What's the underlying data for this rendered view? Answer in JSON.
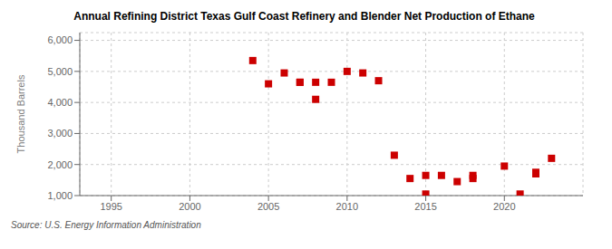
{
  "chart_data": {
    "type": "scatter",
    "title": "Annual Refining District Texas Gulf Coast Refinery and Blender Net Production of Ethane",
    "ylabel": "Thousand Barrels",
    "annotations": [
      "Source: U.S. Energy Information Administration"
    ],
    "x": [
      2004,
      2005,
      2006,
      2007,
      2007,
      2008,
      2008,
      2009,
      2010,
      2011,
      2012,
      2013,
      2014,
      2015,
      2015,
      2016,
      2017,
      2018,
      2018,
      2020,
      2021,
      2022,
      2022,
      2023
    ],
    "values": [
      5350,
      4600,
      4950,
      4650,
      4650,
      4650,
      4100,
      4650,
      5000,
      4950,
      4700,
      2300,
      1550,
      1650,
      1050,
      1650,
      1450,
      1650,
      1550,
      1950,
      1050,
      1700,
      1750,
      2200
    ],
    "color": "#cc0000",
    "marker": "square",
    "xlim": [
      1993,
      2025
    ],
    "ylim": [
      1000,
      6250
    ],
    "xticks": [
      1995,
      2000,
      2005,
      2010,
      2015,
      2020
    ],
    "yticks": [
      {
        "value": 1000,
        "label": "1,000"
      },
      {
        "value": 2000,
        "label": "2,000"
      },
      {
        "value": 3000,
        "label": "3,000"
      },
      {
        "value": 4000,
        "label": "4,000"
      },
      {
        "value": 5000,
        "label": "5,000"
      },
      {
        "value": 6000,
        "label": "6,000"
      }
    ],
    "grid": true
  }
}
